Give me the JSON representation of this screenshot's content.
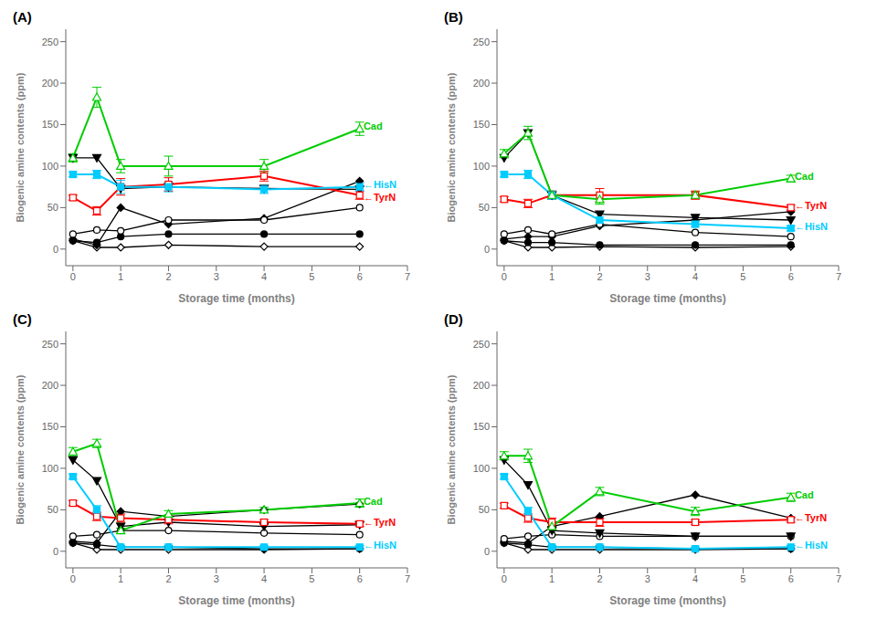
{
  "chart_data": [
    {
      "type": "line",
      "title": "(A)",
      "x_label": "Storage time (months)",
      "y_label": "Biogenic amine contents (ppm)",
      "x": [
        0,
        0.5,
        1,
        2,
        4,
        6
      ],
      "xlim": [
        -0.15,
        7
      ],
      "xticks": [
        0,
        1,
        2,
        3,
        4,
        5,
        6,
        7
      ],
      "ylim": [
        -20,
        265
      ],
      "yticks": [
        0,
        50,
        100,
        150,
        200,
        250
      ],
      "series": [
        {
          "color": "black",
          "marker": "open_diamond",
          "values": [
            10,
            2,
            2,
            5,
            3,
            3
          ]
        },
        {
          "color": "black",
          "marker": "diamond",
          "values": [
            12,
            5,
            50,
            30,
            37,
            82
          ]
        },
        {
          "color": "black",
          "marker": "circle",
          "values": [
            10,
            8,
            15,
            18,
            18,
            18
          ]
        },
        {
          "color": "black",
          "marker": "open_circle",
          "values": [
            18,
            23,
            22,
            35,
            35,
            50
          ]
        },
        {
          "color": "black",
          "marker": "triangle_down",
          "values": [
            110,
            110,
            73,
            75,
            73,
            72
          ]
        },
        {
          "color": "red",
          "marker": "open_square",
          "values": [
            62,
            46,
            75,
            78,
            88,
            65
          ],
          "error": [
            3,
            5,
            10,
            8,
            6,
            5
          ]
        },
        {
          "color": "#00ccff",
          "marker": "square",
          "values": [
            90,
            90,
            75,
            75,
            72,
            75
          ],
          "error": [
            3,
            5,
            8,
            6,
            5,
            5
          ]
        },
        {
          "color": "#00cc00",
          "marker": "open_triangle_up",
          "values": [
            110,
            183,
            100,
            100,
            100,
            145
          ],
          "error": [
            5,
            12,
            8,
            12,
            8,
            8
          ]
        }
      ],
      "annotations": [
        {
          "text": "Cad",
          "x": 6.08,
          "y": 148,
          "color": "#00cc00"
        },
        {
          "text": "←HisN",
          "x": 6.08,
          "y": 78,
          "color": "#00ccff"
        },
        {
          "text": "←TyrN",
          "x": 6.08,
          "y": 62,
          "color": "red"
        }
      ]
    },
    {
      "type": "line",
      "title": "(B)",
      "x_label": "Storage time (months)",
      "y_label": "Biogenic amine contents (ppm)",
      "x": [
        0,
        0.5,
        1,
        2,
        4,
        6
      ],
      "xlim": [
        -0.15,
        7
      ],
      "xticks": [
        0,
        1,
        2,
        3,
        4,
        5,
        6,
        7
      ],
      "ylim": [
        -20,
        265
      ],
      "yticks": [
        0,
        50,
        100,
        150,
        200,
        250
      ],
      "series": [
        {
          "color": "black",
          "marker": "open_diamond",
          "values": [
            10,
            2,
            2,
            3,
            2,
            3
          ]
        },
        {
          "color": "black",
          "marker": "diamond",
          "values": [
            12,
            15,
            15,
            28,
            35,
            45
          ]
        },
        {
          "color": "black",
          "marker": "circle",
          "values": [
            10,
            8,
            8,
            5,
            5,
            5
          ]
        },
        {
          "color": "black",
          "marker": "open_circle",
          "values": [
            18,
            23,
            18,
            30,
            20,
            15
          ]
        },
        {
          "color": "black",
          "marker": "triangle_down",
          "values": [
            110,
            140,
            65,
            42,
            38,
            35
          ]
        },
        {
          "color": "red",
          "marker": "open_square",
          "values": [
            60,
            55,
            65,
            65,
            65,
            50
          ],
          "error": [
            3,
            5,
            5,
            8,
            5,
            3
          ]
        },
        {
          "color": "#00ccff",
          "marker": "square",
          "values": [
            90,
            90,
            65,
            35,
            30,
            25
          ],
          "error": [
            3,
            5,
            5,
            8,
            3,
            3
          ]
        },
        {
          "color": "#00cc00",
          "marker": "open_triangle_up",
          "values": [
            115,
            140,
            65,
            60,
            65,
            85
          ],
          "error": [
            5,
            8,
            4,
            6,
            4,
            4
          ]
        }
      ],
      "annotations": [
        {
          "text": "Cad",
          "x": 6.08,
          "y": 88,
          "color": "#00cc00"
        },
        {
          "text": "←TyrN",
          "x": 6.08,
          "y": 52,
          "color": "red"
        },
        {
          "text": "←HisN",
          "x": 6.08,
          "y": 27,
          "color": "#00ccff"
        }
      ]
    },
    {
      "type": "line",
      "title": "(C)",
      "x_label": "Storage time (months)",
      "y_label": "Biogenic amine contents (ppm)",
      "x": [
        0,
        0.5,
        1,
        2,
        4,
        6
      ],
      "xlim": [
        -0.15,
        7
      ],
      "xticks": [
        0,
        1,
        2,
        3,
        4,
        5,
        6,
        7
      ],
      "ylim": [
        -20,
        265
      ],
      "yticks": [
        0,
        50,
        100,
        150,
        200,
        250
      ],
      "series": [
        {
          "color": "black",
          "marker": "open_diamond",
          "values": [
            10,
            2,
            2,
            2,
            2,
            3
          ]
        },
        {
          "color": "black",
          "marker": "diamond",
          "values": [
            12,
            10,
            48,
            42,
            50,
            57
          ]
        },
        {
          "color": "black",
          "marker": "circle",
          "values": [
            10,
            8,
            5,
            5,
            3,
            3
          ]
        },
        {
          "color": "black",
          "marker": "open_circle",
          "values": [
            18,
            20,
            25,
            25,
            22,
            20
          ]
        },
        {
          "color": "black",
          "marker": "triangle_down",
          "values": [
            110,
            85,
            30,
            35,
            30,
            32
          ]
        },
        {
          "color": "red",
          "marker": "open_square",
          "values": [
            58,
            42,
            40,
            38,
            35,
            33
          ],
          "error": [
            3,
            5,
            5,
            5,
            3,
            3
          ]
        },
        {
          "color": "#00ccff",
          "marker": "square",
          "values": [
            90,
            50,
            5,
            5,
            5,
            5
          ],
          "error": [
            3,
            5,
            2,
            2,
            2,
            2
          ]
        },
        {
          "color": "#00cc00",
          "marker": "open_triangle_up",
          "values": [
            120,
            130,
            25,
            45,
            50,
            58
          ],
          "error": [
            5,
            5,
            3,
            4,
            3,
            5
          ]
        }
      ],
      "annotations": [
        {
          "text": "Cad",
          "x": 6.08,
          "y": 60,
          "color": "#00cc00"
        },
        {
          "text": "←TyrN",
          "x": 6.08,
          "y": 35,
          "color": "red"
        },
        {
          "text": "←HisN",
          "x": 6.08,
          "y": 7,
          "color": "#00ccff"
        }
      ]
    },
    {
      "type": "line",
      "title": "(D)",
      "x_label": "Storage time (months)",
      "y_label": "Biogenic amine contents (ppm)",
      "x": [
        0,
        0.5,
        1,
        2,
        4,
        6
      ],
      "xlim": [
        -0.15,
        7
      ],
      "xticks": [
        0,
        1,
        2,
        3,
        4,
        5,
        6,
        7
      ],
      "ylim": [
        -20,
        265
      ],
      "yticks": [
        0,
        50,
        100,
        150,
        200,
        250
      ],
      "series": [
        {
          "color": "black",
          "marker": "open_diamond",
          "values": [
            10,
            2,
            2,
            2,
            2,
            3
          ]
        },
        {
          "color": "black",
          "marker": "diamond",
          "values": [
            12,
            10,
            30,
            42,
            68,
            40
          ]
        },
        {
          "color": "black",
          "marker": "circle",
          "values": [
            10,
            8,
            5,
            5,
            3,
            3
          ]
        },
        {
          "color": "black",
          "marker": "open_circle",
          "values": [
            15,
            18,
            20,
            18,
            18,
            18
          ]
        },
        {
          "color": "black",
          "marker": "triangle_down",
          "values": [
            110,
            80,
            25,
            22,
            18,
            18
          ]
        },
        {
          "color": "red",
          "marker": "open_square",
          "values": [
            55,
            40,
            35,
            35,
            35,
            38
          ],
          "error": [
            3,
            5,
            5,
            5,
            3,
            3
          ]
        },
        {
          "color": "#00ccff",
          "marker": "square",
          "values": [
            90,
            48,
            5,
            5,
            3,
            5
          ],
          "error": [
            3,
            5,
            2,
            2,
            2,
            2
          ]
        },
        {
          "color": "#00cc00",
          "marker": "open_triangle_up",
          "values": [
            115,
            115,
            30,
            72,
            48,
            65
          ],
          "error": [
            5,
            8,
            3,
            5,
            5,
            5
          ]
        }
      ],
      "annotations": [
        {
          "text": "Cad",
          "x": 6.08,
          "y": 68,
          "color": "#00cc00"
        },
        {
          "text": "←TyrN",
          "x": 6.08,
          "y": 40,
          "color": "red"
        },
        {
          "text": "←HisN",
          "x": 6.08,
          "y": 7,
          "color": "#00ccff"
        }
      ]
    }
  ]
}
